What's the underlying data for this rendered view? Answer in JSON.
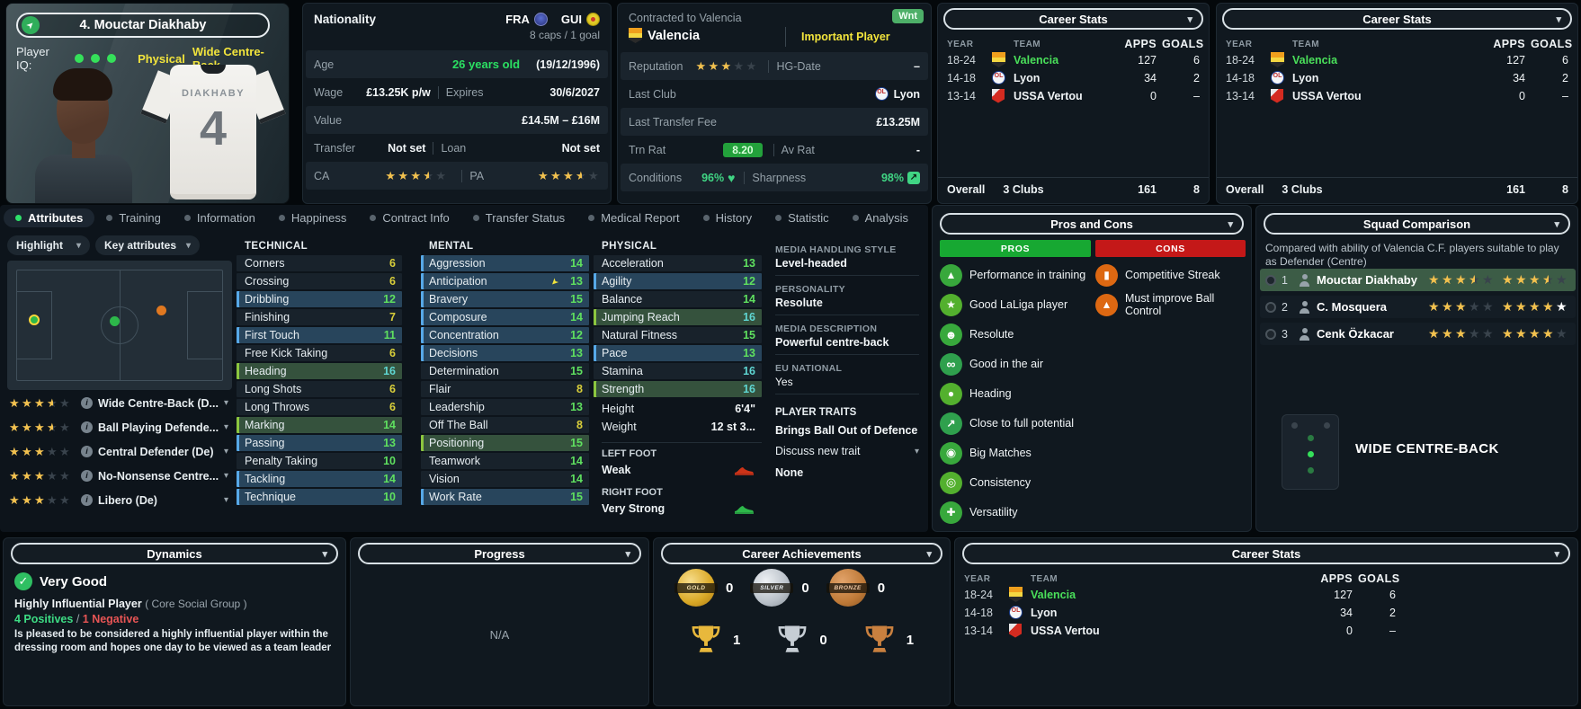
{
  "player": {
    "name": "4. Mouctar Diakhaby",
    "iq_label": "Player IQ:",
    "style_tag": "Physical",
    "role_tag": "Wide Centre-Back",
    "shirt_name": "DIAKHABY",
    "shirt_number": "4"
  },
  "info": {
    "nationality_label": "Nationality",
    "nat_primary": "FRA",
    "nat_secondary": "GUI",
    "caps": "8 caps / 1 goal",
    "age_label": "Age",
    "age": "26 years old",
    "dob": "(19/12/1996)",
    "wage_label": "Wage",
    "wage": "£13.25K p/w",
    "expires_label": "Expires",
    "expires": "30/6/2027",
    "value_label": "Value",
    "value": "£14.5M – £16M",
    "transfer_label": "Transfer",
    "transfer": "Not set",
    "loan_label": "Loan",
    "loan": "Not set",
    "ca_label": "CA",
    "ca": 3.5,
    "pa_label": "PA",
    "pa": 3.5
  },
  "contract": {
    "title": "Contracted to Valencia",
    "club": "Valencia",
    "status": "Important Player",
    "wanted_badge": "Wnt",
    "reputation_label": "Reputation",
    "reputation": 3,
    "hg_label": "HG-Date",
    "hg": "–",
    "last_club_label": "Last Club",
    "last_club": "Lyon",
    "fee_label": "Last Transfer Fee",
    "fee": "£13.25M",
    "trn_label": "Trn Rat",
    "trn": "8.20",
    "avrat_label": "Av Rat",
    "avrat": "-",
    "conditions_label": "Conditions",
    "conditions": "96%",
    "sharpness_label": "Sharpness",
    "sharpness": "98%"
  },
  "career": {
    "title": "Career Stats",
    "col_year": "YEAR",
    "col_team": "TEAM",
    "col_apps": "APPS",
    "col_goals": "GOALS",
    "rows": [
      {
        "year": "18-24",
        "team": "Valencia",
        "apps": "127",
        "goals": "6",
        "crest": "valencia",
        "tc": "green"
      },
      {
        "year": "14-18",
        "team": "Lyon",
        "apps": "34",
        "goals": "2",
        "crest": "lyon",
        "tc": "white"
      },
      {
        "year": "13-14",
        "team": "USSA Vertou",
        "apps": "0",
        "goals": "–",
        "crest": "vertou",
        "tc": "white"
      }
    ],
    "overall_label": "Overall",
    "overall_team": "3 Clubs",
    "overall_apps": "161",
    "overall_goals": "8"
  },
  "tabs": [
    {
      "label": "Attributes",
      "state": "active"
    },
    {
      "label": "Training",
      "state": "idle"
    },
    {
      "label": "Information",
      "state": "idle"
    },
    {
      "label": "Happiness",
      "state": "idle"
    },
    {
      "label": "Contract Info",
      "state": "idle"
    },
    {
      "label": "Transfer Status",
      "state": "idle"
    },
    {
      "label": "Medical Report",
      "state": "idle"
    },
    {
      "label": "History",
      "state": "idle"
    },
    {
      "label": "Statistic",
      "state": "idle"
    },
    {
      "label": "Analysis",
      "state": "idle"
    }
  ],
  "controls": {
    "highlight": "Highlight",
    "key_attributes": "Key attributes"
  },
  "positions": [
    {
      "stars": 3.5,
      "label": "Wide Centre-Back (D..."
    },
    {
      "stars": 3.5,
      "label": "Ball Playing Defende..."
    },
    {
      "stars": 3,
      "label": "Central Defender (De)"
    },
    {
      "stars": 3,
      "label": "No-Nonsense Centre..."
    },
    {
      "stars": 3,
      "label": "Libero (De)"
    }
  ],
  "attrs": {
    "technical_title": "TECHNICAL",
    "technical": [
      {
        "name": "Corners",
        "value": "6"
      },
      {
        "name": "Crossing",
        "value": "6"
      },
      {
        "name": "Dribbling",
        "value": "12",
        "hl": "blue"
      },
      {
        "name": "Finishing",
        "value": "7"
      },
      {
        "name": "First Touch",
        "value": "11",
        "hl": "blue"
      },
      {
        "name": "Free Kick Taking",
        "value": "6"
      },
      {
        "name": "Heading",
        "value": "16",
        "hl": "green"
      },
      {
        "name": "Long Shots",
        "value": "6"
      },
      {
        "name": "Long Throws",
        "value": "6"
      },
      {
        "name": "Marking",
        "value": "14",
        "hl": "green"
      },
      {
        "name": "Passing",
        "value": "13",
        "hl": "blue"
      },
      {
        "name": "Penalty Taking",
        "value": "10"
      },
      {
        "name": "Tackling",
        "value": "14",
        "hl": "blue"
      },
      {
        "name": "Technique",
        "value": "10",
        "hl": "blue"
      }
    ],
    "mental_title": "MENTAL",
    "mental": [
      {
        "name": "Aggression",
        "value": "14",
        "hl": "blue"
      },
      {
        "name": "Anticipation",
        "value": "13",
        "hl": "blue",
        "mark": true
      },
      {
        "name": "Bravery",
        "value": "15",
        "hl": "blue"
      },
      {
        "name": "Composure",
        "value": "14",
        "hl": "blue"
      },
      {
        "name": "Concentration",
        "value": "12",
        "hl": "blue"
      },
      {
        "name": "Decisions",
        "value": "13",
        "hl": "blue"
      },
      {
        "name": "Determination",
        "value": "15"
      },
      {
        "name": "Flair",
        "value": "8"
      },
      {
        "name": "Leadership",
        "value": "13"
      },
      {
        "name": "Off The Ball",
        "value": "8"
      },
      {
        "name": "Positioning",
        "value": "15",
        "hl": "green"
      },
      {
        "name": "Teamwork",
        "value": "14"
      },
      {
        "name": "Vision",
        "value": "14"
      },
      {
        "name": "Work Rate",
        "value": "15",
        "hl": "blue"
      }
    ],
    "physical_title": "PHYSICAL",
    "physical": [
      {
        "name": "Acceleration",
        "value": "13"
      },
      {
        "name": "Agility",
        "value": "12",
        "hl": "blue"
      },
      {
        "name": "Balance",
        "value": "14"
      },
      {
        "name": "Jumping Reach",
        "value": "16",
        "hl": "green"
      },
      {
        "name": "Natural Fitness",
        "value": "15"
      },
      {
        "name": "Pace",
        "value": "13",
        "hl": "blue"
      },
      {
        "name": "Stamina",
        "value": "16"
      },
      {
        "name": "Strength",
        "value": "16",
        "hl": "green"
      }
    ],
    "height_label": "Height",
    "height": "6'4\"",
    "weight_label": "Weight",
    "weight": "12 st 3...",
    "left_foot_label": "LEFT FOOT",
    "left_foot": "Weak",
    "right_foot_label": "RIGHT FOOT",
    "right_foot": "Very Strong"
  },
  "media": {
    "handling_label": "MEDIA HANDLING STYLE",
    "handling": "Level-headed",
    "personality_label": "PERSONALITY",
    "personality": "Resolute",
    "description_label": "MEDIA DESCRIPTION",
    "description": "Powerful centre-back",
    "eu_label": "EU NATIONAL",
    "eu": "Yes",
    "traits_label": "PLAYER TRAITS",
    "trait": "Brings Ball Out of Defence",
    "discuss": "Discuss new trait",
    "none": "None"
  },
  "pros_cons": {
    "title": "Pros and Cons",
    "pros_label": "PROS",
    "cons_label": "CONS",
    "pros": [
      {
        "icon": "training",
        "label": "Performance in training"
      },
      {
        "icon": "star",
        "label": "Good LaLiga player"
      },
      {
        "icon": "head",
        "label": "Resolute"
      },
      {
        "icon": "air",
        "label": "Good in the air"
      },
      {
        "icon": "heading",
        "label": "Heading"
      },
      {
        "icon": "growth",
        "label": "Close to full potential"
      },
      {
        "icon": "bigmatch",
        "label": "Big Matches"
      },
      {
        "icon": "consistency",
        "label": "Consistency"
      },
      {
        "icon": "versatility",
        "label": "Versatility"
      }
    ],
    "cons": [
      {
        "icon": "card",
        "label": "Competitive Streak"
      },
      {
        "icon": "cone",
        "label": "Must improve Ball Control"
      }
    ]
  },
  "squad": {
    "title": "Squad Comparison",
    "desc": "Compared with ability of Valencia C.F. players suitable to play as Defender (Centre)",
    "rows": [
      {
        "rank": "1",
        "name": "Mouctar Diakhaby",
        "ability": 3.5,
        "potential": 3.5,
        "hl": "current"
      },
      {
        "rank": "2",
        "name": "C. Mosquera",
        "ability": 3,
        "potential": 4,
        "white": true
      },
      {
        "rank": "3",
        "name": "Cenk Özkacar",
        "ability": 3,
        "potential": 4
      }
    ],
    "role": "WIDE CENTRE-BACK"
  },
  "dynamics": {
    "title": "Dynamics",
    "rating": "Very Good",
    "influence": "Highly Influential Player",
    "influence_group": "( Core Social Group )",
    "positives": "4 Positives",
    "separator": " / ",
    "negatives": "1 Negative",
    "description": "Is pleased to be considered a highly influential player within the dressing room and hopes one day to be viewed as a team leader"
  },
  "progress": {
    "title": "Progress",
    "value": "N/A"
  },
  "achievements": {
    "title": "Career Achievements",
    "medals": [
      {
        "type": "gold",
        "label": "GOLD",
        "count": "0"
      },
      {
        "type": "silver",
        "label": "SILVER",
        "count": "0"
      },
      {
        "type": "bronze",
        "label": "BRONZE",
        "count": "0"
      }
    ],
    "trophies": [
      {
        "type": "gold",
        "count": "1"
      },
      {
        "type": "silver",
        "count": "0"
      },
      {
        "type": "bronze",
        "count": "1"
      }
    ]
  }
}
